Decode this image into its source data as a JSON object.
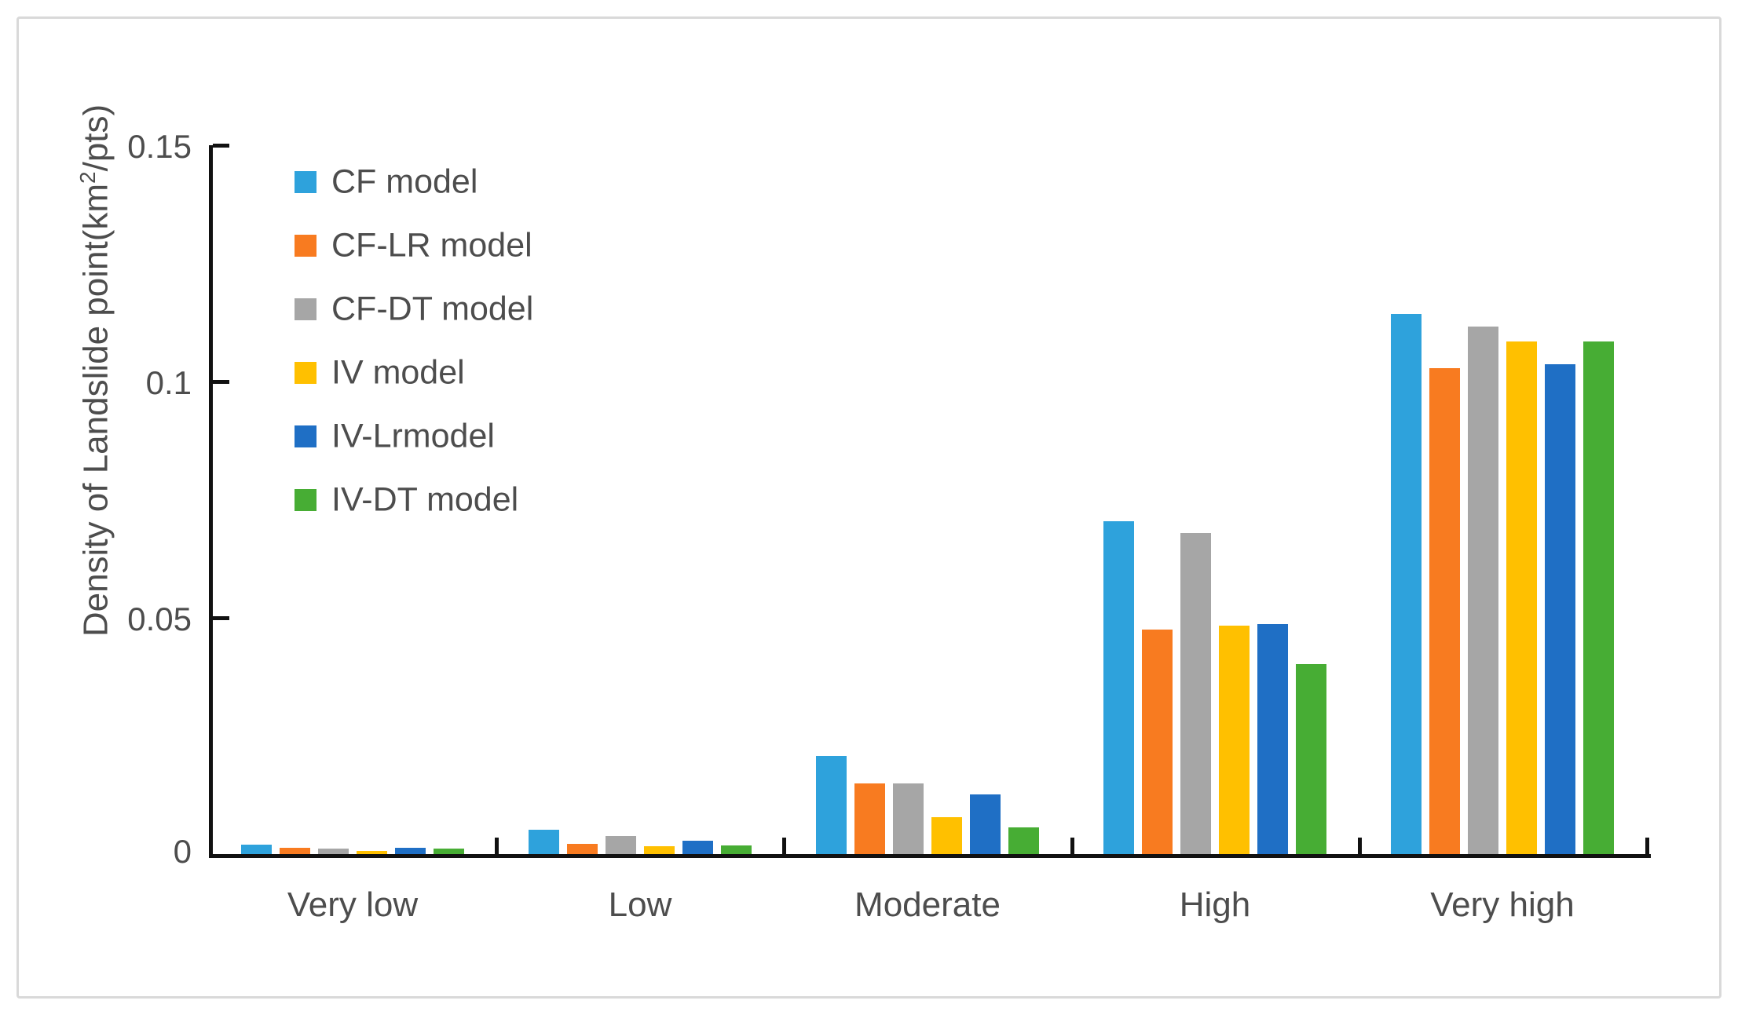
{
  "figure": {
    "background": "#ffffff",
    "frame_border_color": "#d9d9d9",
    "axis_color": "#111111",
    "text_color": "#4d4d4d"
  },
  "chart_data": {
    "type": "bar",
    "title": "",
    "xlabel": "",
    "ylabel": "Density of Landslide point(km²/pts)",
    "ylabel_parts": {
      "pre": "Density of Landslide point(km",
      "sup": "2",
      "post": "/pts)"
    },
    "categories": [
      "Very low",
      "Low",
      "Moderate",
      "High",
      "Very high"
    ],
    "series": [
      {
        "name": "CF model",
        "color": "#2ea2dc",
        "values": [
          0.002,
          0.0051,
          0.0208,
          0.0705,
          0.1143
        ]
      },
      {
        "name": "CF-LR model",
        "color": "#f87b20",
        "values": [
          0.0013,
          0.0021,
          0.0149,
          0.0475,
          0.1029
        ]
      },
      {
        "name": "CF-DT model",
        "color": "#a6a6a6",
        "values": [
          0.0011,
          0.0039,
          0.015,
          0.068,
          0.1116
        ]
      },
      {
        "name": "IV model",
        "color": "#ffc000",
        "values": [
          0.0006,
          0.0017,
          0.0078,
          0.0483,
          0.1085
        ]
      },
      {
        "name": "IV-Lrmodel",
        "color": "#1f6fc5",
        "values": [
          0.0014,
          0.0029,
          0.0127,
          0.0487,
          0.1036
        ]
      },
      {
        "name": "IV-DT model",
        "color": "#47ad34",
        "values": [
          0.0012,
          0.0019,
          0.0056,
          0.0402,
          0.1084
        ]
      }
    ],
    "ylim": [
      0,
      0.15
    ],
    "y_ticks": [
      0,
      0.05,
      0.1,
      0.15
    ],
    "y_tick_labels": [
      "0",
      "0.05",
      "0.1",
      "0.15"
    ],
    "grid": false,
    "legend_position": "upper-left-inside"
  }
}
